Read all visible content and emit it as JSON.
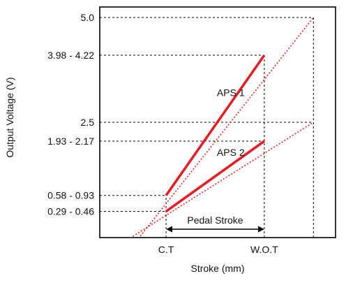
{
  "chart_data": {
    "type": "line",
    "xlabel": "Stroke (mm)",
    "ylabel": "Output Voltage (V)",
    "x_ticks": [
      {
        "label": "C.T",
        "value": 1
      },
      {
        "label": "W.O.T",
        "value": 3
      },
      {
        "label": "",
        "value": 4
      }
    ],
    "xlim": [
      -0.35,
      4.45
    ],
    "ylim": [
      -0.25,
      5.25
    ],
    "y_ticks": [
      {
        "label": "0.29 - 0.46",
        "value": 0.375
      },
      {
        "label": "0.58 - 0.93",
        "value": 0.755
      },
      {
        "label": "1.93 - 2.17",
        "value": 2.05
      },
      {
        "label": "2.5",
        "value": 2.5
      },
      {
        "label": "3.98 - 4.22",
        "value": 4.1
      },
      {
        "label": "5.0",
        "value": 5.0
      }
    ],
    "series": [
      {
        "name": "APS 1",
        "color": "#e01f26",
        "solid": {
          "x": [
            1,
            3
          ],
          "y": [
            0.755,
            4.1
          ]
        },
        "extension": {
          "x": [
            0,
            4
          ],
          "y": [
            -0.92,
            5.0
          ]
        }
      },
      {
        "name": "APS 2",
        "color": "#e01f26",
        "solid": {
          "x": [
            1,
            3
          ],
          "y": [
            0.375,
            2.05
          ]
        },
        "extension": {
          "x": [
            0,
            4
          ],
          "y": [
            -0.46,
            2.5
          ]
        }
      }
    ],
    "annotations": [
      {
        "text": "Pedal Stroke",
        "from_x": 1,
        "to_x": 3,
        "type": "double-arrow"
      }
    ],
    "grid": "dashed guide lines to ticks"
  }
}
